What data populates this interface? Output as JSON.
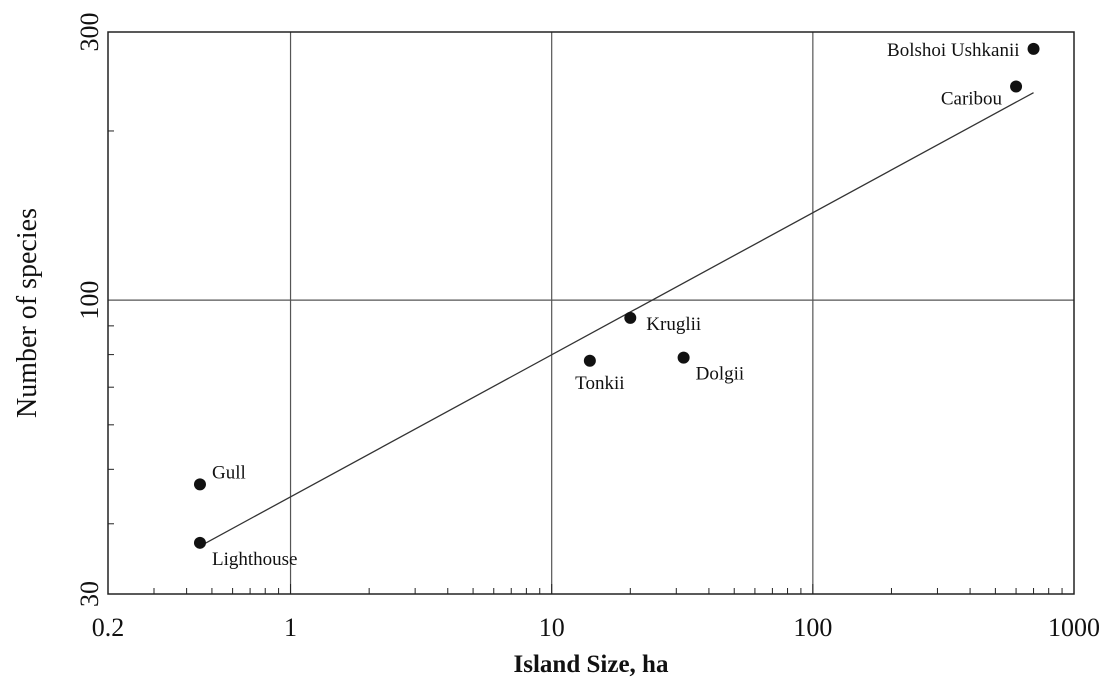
{
  "chart_data": {
    "type": "scatter",
    "xlabel": "Island Size, ha",
    "ylabel": "Number of species",
    "x_scale": "log",
    "y_scale": "log",
    "xlim": [
      0.2,
      1000
    ],
    "ylim": [
      30,
      300
    ],
    "x_ticks": [
      {
        "value": 0.2,
        "label": "0.2"
      },
      {
        "value": 1,
        "label": "1"
      },
      {
        "value": 10,
        "label": "10"
      },
      {
        "value": 100,
        "label": "100"
      },
      {
        "value": 1000,
        "label": "1000"
      }
    ],
    "y_ticks": [
      {
        "value": 30,
        "label": "30"
      },
      {
        "value": 100,
        "label": "100"
      },
      {
        "value": 300,
        "label": "300"
      }
    ],
    "grid": true,
    "points": [
      {
        "label": "Bolshoi Ushkanii",
        "x": 700,
        "y": 280,
        "label_pos": "left"
      },
      {
        "label": "Caribou",
        "x": 600,
        "y": 240,
        "label_pos": "below-left"
      },
      {
        "label": "Kruglii",
        "x": 20,
        "y": 93,
        "label_pos": "right"
      },
      {
        "label": "Tonkii",
        "x": 14,
        "y": 78,
        "label_pos": "below"
      },
      {
        "label": "Dolgii",
        "x": 32,
        "y": 79,
        "label_pos": "below-right"
      },
      {
        "label": "Gull",
        "x": 0.45,
        "y": 47,
        "label_pos": "above-right"
      },
      {
        "label": "Lighthouse",
        "x": 0.45,
        "y": 37,
        "label_pos": "below-right"
      }
    ],
    "fit_line": {
      "x": [
        0.45,
        700
      ],
      "y": [
        36.5,
        234
      ]
    }
  }
}
